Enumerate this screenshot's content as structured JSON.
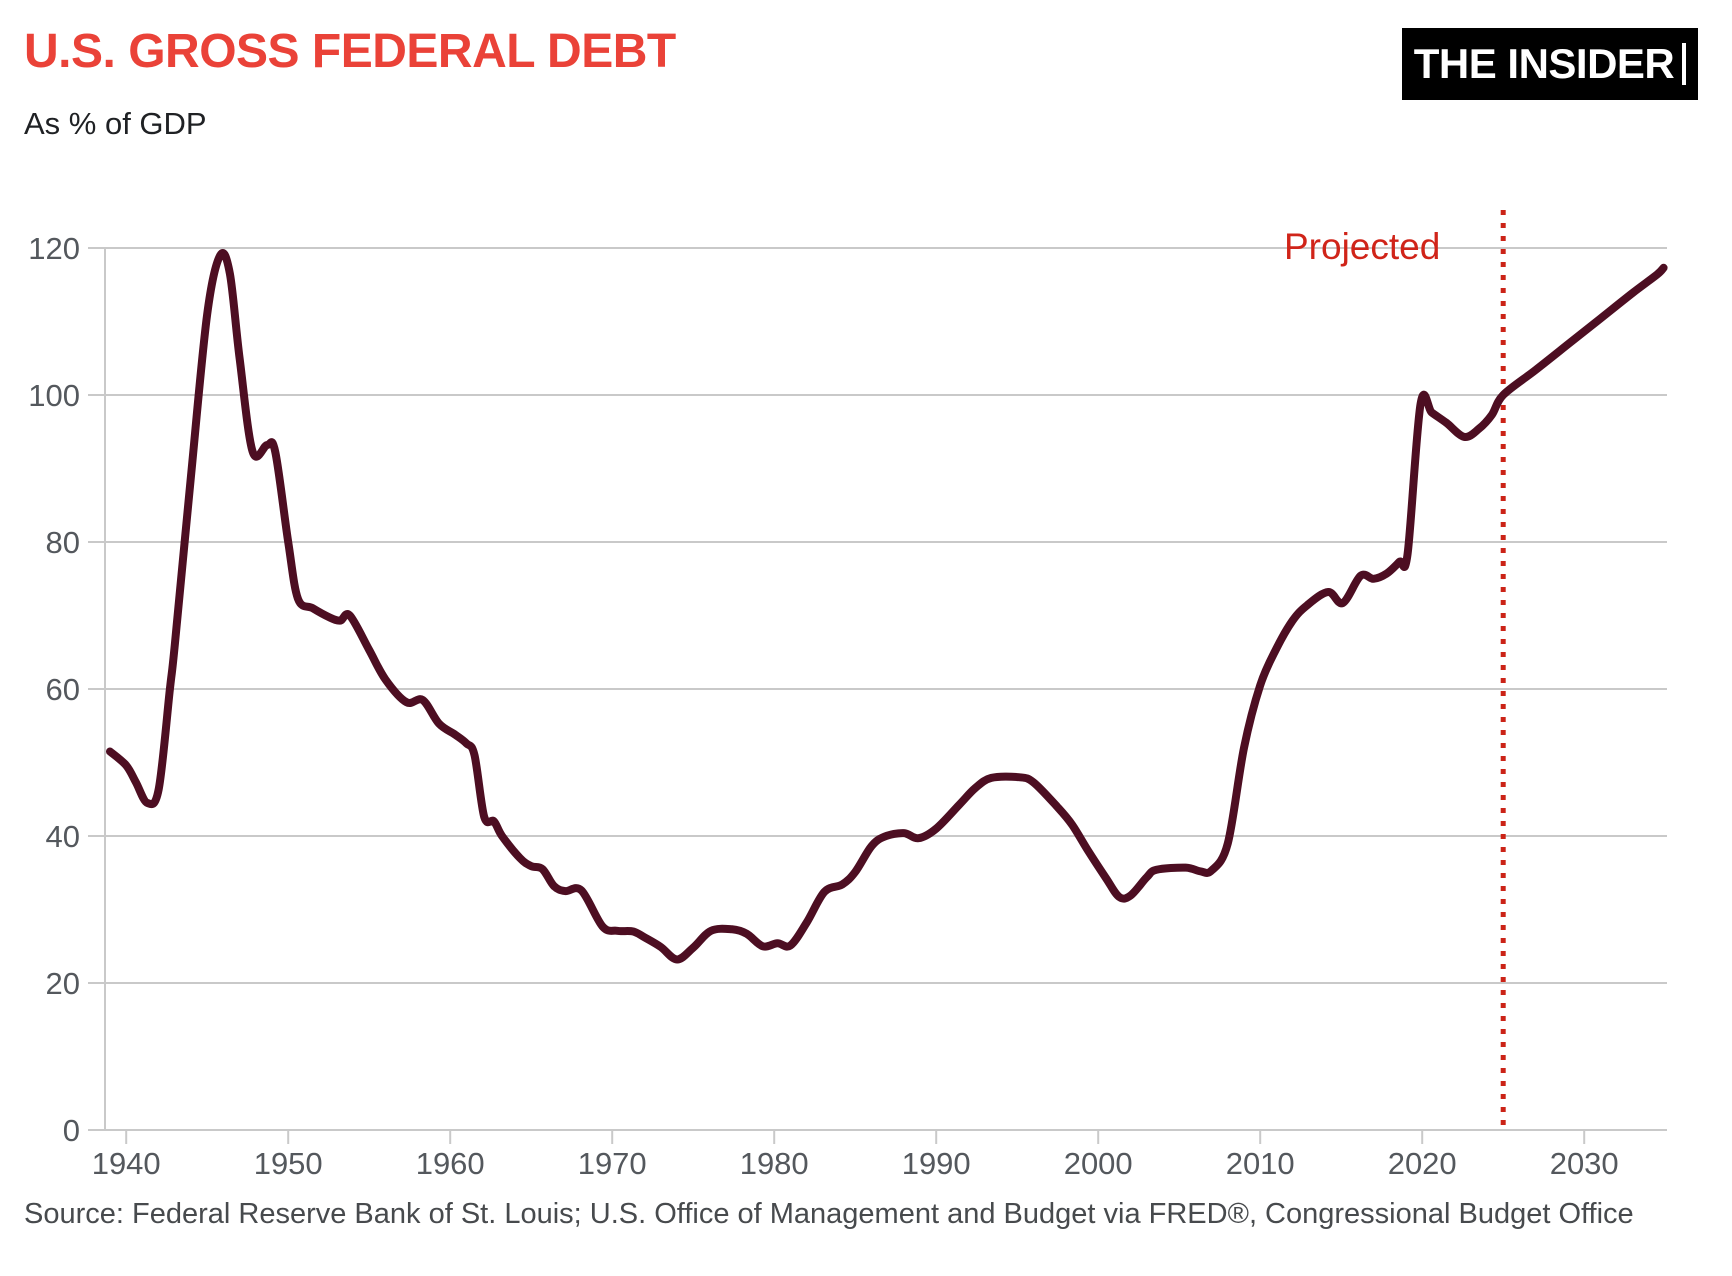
{
  "header": {
    "title": "U.S. GROSS FEDERAL DEBT",
    "subtitle": "As % of GDP",
    "logo_text": "THE INSIDER"
  },
  "footer": {
    "source": "Source: Federal Reserve Bank of St. Louis; U.S. Office of Management and Budget via FRED®, Congressional Budget Office"
  },
  "colors": {
    "title_red": "#ea4238",
    "line_maroon": "#4d0e22",
    "projection_red": "#cb2317",
    "gridline_gray": "#c9c9c9",
    "tick_label_gray": "#54585d"
  },
  "chart_data": {
    "type": "line",
    "title": "U.S. GROSS FEDERAL DEBT",
    "subtitle": "As % of GDP",
    "xlabel": "",
    "ylabel": "",
    "xlim": [
      1938.7,
      2035.6
    ],
    "ylim": [
      0,
      120
    ],
    "x_ticks": [
      1940,
      1950,
      1960,
      1970,
      1980,
      1990,
      2000,
      2010,
      2020,
      2030
    ],
    "y_ticks": [
      0,
      20,
      40,
      60,
      80,
      100,
      120
    ],
    "grid": "horizontal",
    "legend": "none",
    "projection": {
      "label": "Projected",
      "boundary_year": 2025
    },
    "series": [
      {
        "name": "Gross federal debt as % of GDP",
        "points": [
          [
            1939,
            51.5
          ],
          [
            1940,
            49.6
          ],
          [
            1940.6,
            47.3
          ],
          [
            1941.3,
            44.5
          ],
          [
            1942,
            46.3
          ],
          [
            1942.7,
            60
          ],
          [
            1943,
            66
          ],
          [
            1944,
            89
          ],
          [
            1945,
            111
          ],
          [
            1945.8,
            119
          ],
          [
            1946.4,
            116.5
          ],
          [
            1947,
            105
          ],
          [
            1947.8,
            92.3
          ],
          [
            1948.7,
            93.2
          ],
          [
            1949.2,
            92.3
          ],
          [
            1950,
            80
          ],
          [
            1950.6,
            72.3
          ],
          [
            1951.5,
            71
          ],
          [
            1952.5,
            69.8
          ],
          [
            1953.2,
            69.3
          ],
          [
            1953.8,
            70
          ],
          [
            1955,
            65.3
          ],
          [
            1956,
            61.3
          ],
          [
            1957.3,
            58.2
          ],
          [
            1958.3,
            58.5
          ],
          [
            1959.3,
            55.3
          ],
          [
            1960.3,
            53.8
          ],
          [
            1961,
            52.6
          ],
          [
            1961.5,
            51
          ],
          [
            1962.1,
            42.6
          ],
          [
            1962.7,
            42
          ],
          [
            1963.2,
            40
          ],
          [
            1964.3,
            37
          ],
          [
            1965,
            35.9
          ],
          [
            1965.7,
            35.5
          ],
          [
            1966.4,
            33.2
          ],
          [
            1967.1,
            32.5
          ],
          [
            1968.1,
            32.6
          ],
          [
            1969.4,
            27.7
          ],
          [
            1970.3,
            27.1
          ],
          [
            1971.3,
            27
          ],
          [
            1972,
            26.2
          ],
          [
            1973,
            24.9
          ],
          [
            1974,
            23.2
          ],
          [
            1975,
            24.8
          ],
          [
            1976.1,
            27.1
          ],
          [
            1977.4,
            27.3
          ],
          [
            1978.3,
            26.7
          ],
          [
            1979.3,
            25
          ],
          [
            1980.2,
            25.4
          ],
          [
            1981,
            25.1
          ],
          [
            1982,
            28.2
          ],
          [
            1983.1,
            32.4
          ],
          [
            1984.2,
            33.4
          ],
          [
            1985,
            35.1
          ],
          [
            1986,
            38.6
          ],
          [
            1986.8,
            39.9
          ],
          [
            1988,
            40.4
          ],
          [
            1988.9,
            39.7
          ],
          [
            1990,
            41
          ],
          [
            1991.4,
            44.2
          ],
          [
            1992.4,
            46.5
          ],
          [
            1993.4,
            47.9
          ],
          [
            1995.1,
            48
          ],
          [
            1996,
            47.3
          ],
          [
            1997.5,
            43.9
          ],
          [
            1998.4,
            41.5
          ],
          [
            1999.4,
            37.9
          ],
          [
            2000.5,
            34.2
          ],
          [
            2001.3,
            31.7
          ],
          [
            2002,
            31.9
          ],
          [
            2003,
            34.4
          ],
          [
            2003.6,
            35.4
          ],
          [
            2005.4,
            35.7
          ],
          [
            2006.3,
            35.2
          ],
          [
            2007,
            35.3
          ],
          [
            2008,
            39
          ],
          [
            2009,
            52
          ],
          [
            2010,
            60.5
          ],
          [
            2011,
            65.5
          ],
          [
            2012,
            69.3
          ],
          [
            2012.9,
            71.4
          ],
          [
            2014.2,
            73.2
          ],
          [
            2015.1,
            71.7
          ],
          [
            2016.2,
            75.4
          ],
          [
            2017,
            75
          ],
          [
            2017.8,
            75.7
          ],
          [
            2018.6,
            77.3
          ],
          [
            2019.1,
            78.4
          ],
          [
            2019.9,
            98.8
          ],
          [
            2020.6,
            97.6
          ],
          [
            2021.5,
            96.2
          ],
          [
            2022.6,
            94.3
          ],
          [
            2023.5,
            95.4
          ],
          [
            2024.3,
            97.3
          ],
          [
            2025,
            100
          ],
          [
            2027,
            103.4
          ],
          [
            2029,
            106.9
          ],
          [
            2031,
            110.4
          ],
          [
            2033,
            113.9
          ],
          [
            2034.5,
            116.4
          ],
          [
            2034.9,
            117.3
          ]
        ]
      }
    ]
  }
}
